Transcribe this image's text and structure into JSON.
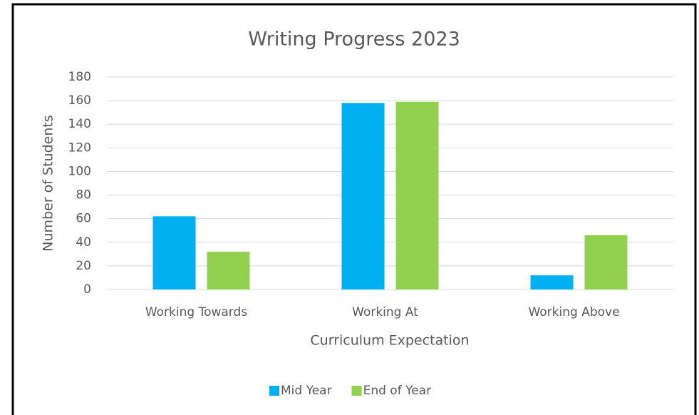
{
  "chart_data": {
    "type": "bar",
    "title": "Writing Progress 2023",
    "x_label": "Curriculum Expectation",
    "y_label": "Number of Students",
    "categories": [
      "Working Towards",
      "Working At",
      "Working Above"
    ],
    "series": [
      {
        "name": "Mid Year",
        "color": "#00b0f0",
        "values": [
          62,
          158,
          12
        ]
      },
      {
        "name": "End of Year",
        "color": "#92d050",
        "values": [
          32,
          159,
          46
        ]
      }
    ],
    "ylim": [
      0,
      180
    ],
    "yticks": [
      0,
      20,
      40,
      60,
      80,
      100,
      120,
      140,
      160,
      180
    ],
    "grid": true,
    "legend": "bottom"
  }
}
